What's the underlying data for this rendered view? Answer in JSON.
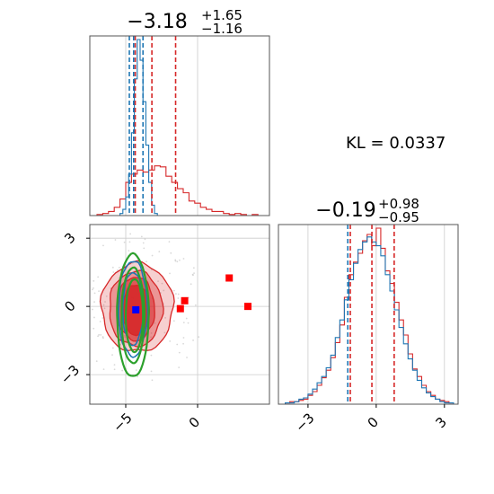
{
  "kl_annotation": "KL = 0.0337",
  "colors": {
    "red": "#d62728",
    "blue": "#1f77b4",
    "green": "#2ca02c",
    "marker_red": "#ff0000",
    "marker_blue": "#0000ff",
    "grid": "#cccccc"
  },
  "chart_data": [
    {
      "type": "histogram",
      "panel": "marginal-x",
      "title": {
        "main": "−3.18",
        "sup": "+1.65",
        "sub": "−1.16"
      },
      "xlim": [
        -7.5,
        5
      ],
      "grid": true,
      "series": [
        {
          "color": "#d62728",
          "bin_edges": [
            -7.0,
            -6.6,
            -6.2,
            -5.8,
            -5.4,
            -5.0,
            -4.6,
            -4.2,
            -3.8,
            -3.4,
            -3.0,
            -2.6,
            -2.2,
            -1.8,
            -1.4,
            -1.0,
            -0.6,
            -0.2,
            0.2,
            0.6,
            1.0,
            1.4,
            1.8,
            2.2,
            2.6,
            3.0,
            3.4,
            3.8,
            4.2,
            4.6,
            5.0
          ],
          "counts": [
            1,
            2,
            4,
            8,
            16,
            32,
            40,
            44,
            42,
            44,
            48,
            47,
            38,
            32,
            26,
            22,
            14,
            12,
            8,
            6,
            4,
            4,
            2,
            1,
            2,
            1,
            0,
            1,
            0,
            0
          ]
        },
        {
          "color": "#1f77b4",
          "bin_edges": [
            -5.4,
            -5.2,
            -5.0,
            -4.8,
            -4.6,
            -4.4,
            -4.2,
            -4.0,
            -3.8,
            -3.6,
            -3.4,
            -3.2,
            -3.0,
            -2.8
          ],
          "counts": [
            2,
            6,
            18,
            40,
            80,
            132,
            170,
            150,
            110,
            68,
            32,
            10,
            2
          ]
        }
      ],
      "quantile_lines": {
        "red": [
          -4.34,
          -3.18,
          -1.53
        ],
        "blue": [
          -4.75,
          -4.45,
          -3.8
        ]
      }
    },
    {
      "type": "contour",
      "panel": "joint",
      "xlim": [
        -7.5,
        5
      ],
      "ylim": [
        -4.3,
        3.6
      ],
      "xticks": [
        -5,
        0
      ],
      "xtick_labels": [
        "−5",
        "0"
      ],
      "yticks": [
        -3,
        0,
        3
      ],
      "ytick_labels": [
        "−3",
        "0",
        "3"
      ],
      "grid": true,
      "scatter_red": {
        "color": "#ff0000",
        "points": [
          [
            -0.9,
            0.25
          ],
          [
            2.2,
            1.25
          ],
          [
            3.5,
            0.0
          ],
          [
            -1.2,
            -0.1
          ]
        ]
      },
      "scatter_blue": {
        "color": "#0000ff",
        "points": [
          [
            -4.3,
            -0.15
          ]
        ]
      },
      "red_contours": [
        {
          "cx": -4.2,
          "cy": -0.05,
          "rx": 2.5,
          "ry": 1.95
        },
        {
          "cx": -4.3,
          "cy": -0.1,
          "rx": 1.85,
          "ry": 1.65
        },
        {
          "cx": -4.3,
          "cy": -0.1,
          "rx": 1.3,
          "ry": 1.4
        },
        {
          "cx": -4.3,
          "cy": -0.15,
          "rx": 0.95,
          "ry": 1.1
        }
      ],
      "blue_contours": [
        {
          "cx": -4.5,
          "cy": -0.1,
          "rx": 1.0,
          "ry": 2.1
        },
        {
          "cx": -4.5,
          "cy": -0.1,
          "rx": 0.7,
          "ry": 1.6
        }
      ],
      "green_contours": [
        {
          "cx": -4.5,
          "cy": -0.4,
          "rx": 1.1,
          "ry": 2.7
        },
        {
          "cx": -4.5,
          "cy": -0.4,
          "rx": 0.8,
          "ry": 2.1
        },
        {
          "cx": -4.4,
          "cy": -0.4,
          "rx": 0.6,
          "ry": 1.6
        }
      ]
    },
    {
      "type": "histogram",
      "panel": "marginal-y",
      "title": {
        "main": "−0.19",
        "sup": "+0.98",
        "sub": "−0.95"
      },
      "xlim": [
        -4.3,
        3.6
      ],
      "xticks": [
        -3,
        0,
        3
      ],
      "xtick_labels": [
        "−3",
        "0",
        "3"
      ],
      "grid": true,
      "series": [
        {
          "color": "#d62728",
          "bin_edges": [
            -4.0,
            -3.8,
            -3.6,
            -3.4,
            -3.2,
            -3.0,
            -2.8,
            -2.6,
            -2.4,
            -2.2,
            -2.0,
            -1.8,
            -1.6,
            -1.4,
            -1.2,
            -1.0,
            -0.8,
            -0.6,
            -0.4,
            -0.2,
            0.0,
            0.2,
            0.4,
            0.6,
            0.8,
            1.0,
            1.2,
            1.4,
            1.6,
            1.8,
            2.0,
            2.2,
            2.4,
            2.6,
            2.8,
            3.0,
            3.2,
            3.4
          ],
          "counts": [
            1,
            2,
            2,
            3,
            4,
            7,
            10,
            15,
            21,
            27,
            37,
            49,
            63,
            85,
            103,
            113,
            120,
            130,
            135,
            126,
            140,
            124,
            106,
            96,
            81,
            67,
            55,
            40,
            28,
            22,
            15,
            10,
            7,
            4,
            3,
            2,
            1
          ]
        },
        {
          "color": "#1f77b4",
          "bin_edges": [
            -4.0,
            -3.8,
            -3.6,
            -3.4,
            -3.2,
            -3.0,
            -2.8,
            -2.6,
            -2.4,
            -2.2,
            -2.0,
            -1.8,
            -1.6,
            -1.4,
            -1.2,
            -1.0,
            -0.8,
            -0.6,
            -0.4,
            -0.2,
            0.0,
            0.2,
            0.4,
            0.6,
            0.8,
            1.0,
            1.2,
            1.4,
            1.6,
            1.8,
            2.0,
            2.2,
            2.4,
            2.6,
            2.8,
            3.0,
            3.2,
            3.4
          ],
          "counts": [
            1,
            1,
            2,
            4,
            5,
            8,
            12,
            17,
            22,
            29,
            39,
            53,
            67,
            83,
            99,
            112,
            123,
            129,
            133,
            129,
            126,
            118,
            103,
            90,
            75,
            61,
            48,
            36,
            27,
            19,
            13,
            9,
            6,
            4,
            2,
            1,
            1
          ]
        }
      ],
      "quantile_lines": {
        "red": [
          -1.14,
          -0.19,
          0.79
        ],
        "blue": [
          -1.25
        ]
      }
    }
  ]
}
